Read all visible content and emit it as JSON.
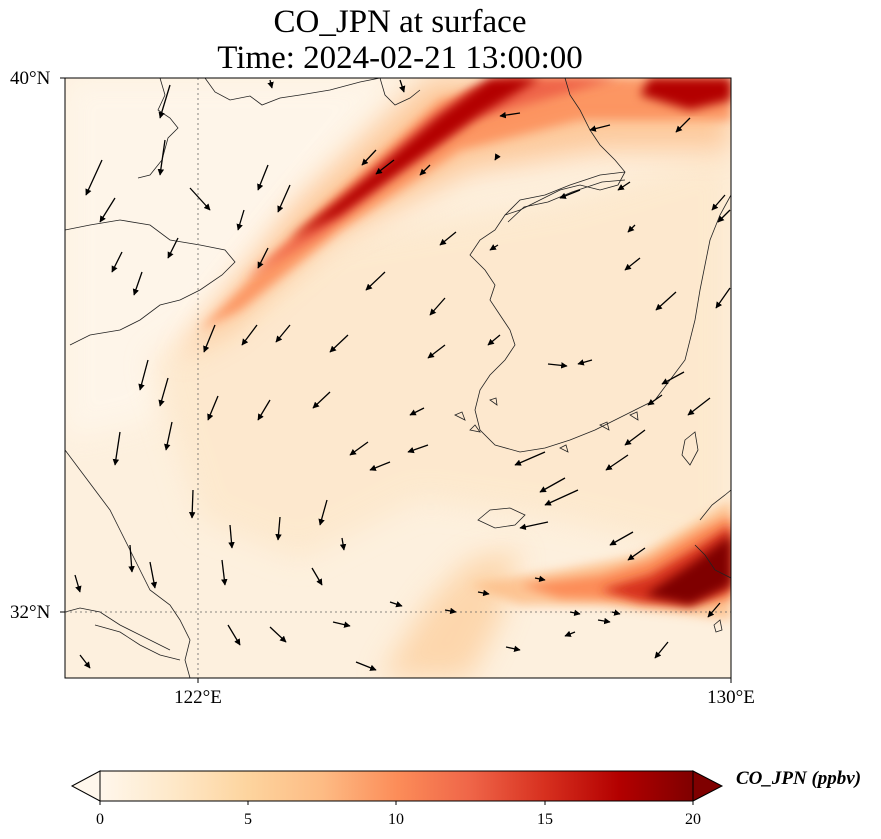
{
  "title": {
    "line1": "CO_JPN at surface",
    "line2": "Time: 2024-02-21 13:00:00"
  },
  "axes": {
    "lat_ticks": [
      "40°N",
      "32°N"
    ],
    "lon_ticks": [
      "122°E",
      "130°E"
    ],
    "lon_range": [
      120,
      130
    ],
    "lat_range": [
      31,
      40
    ]
  },
  "colorbar": {
    "label": "CO_JPN (ppbv)",
    "ticks": [
      "0",
      "5",
      "10",
      "15",
      "20"
    ],
    "range": [
      0,
      20
    ],
    "extend": "both",
    "colormap": "OrRd",
    "colors": [
      "#fff7ec",
      "#fee8c8",
      "#fdd49e",
      "#fdbb84",
      "#fc8d59",
      "#ef6548",
      "#d7301f",
      "#b30000",
      "#7f0000"
    ]
  },
  "plume_features": [
    {
      "name": "northern-plume",
      "peak_value": 20,
      "from": [
        123.5,
        36.7
      ],
      "to": [
        130,
        40
      ]
    },
    {
      "name": "southeastern-plume",
      "peak_value": 20,
      "from": [
        126.5,
        32.5
      ],
      "to": [
        130,
        33.2
      ]
    },
    {
      "name": "southern-tongue",
      "peak_value": 7,
      "from": [
        125.5,
        32.2
      ],
      "to": [
        124,
        31
      ]
    }
  ],
  "wind_vectors": "southwestward flow over the Yellow Sea"
}
